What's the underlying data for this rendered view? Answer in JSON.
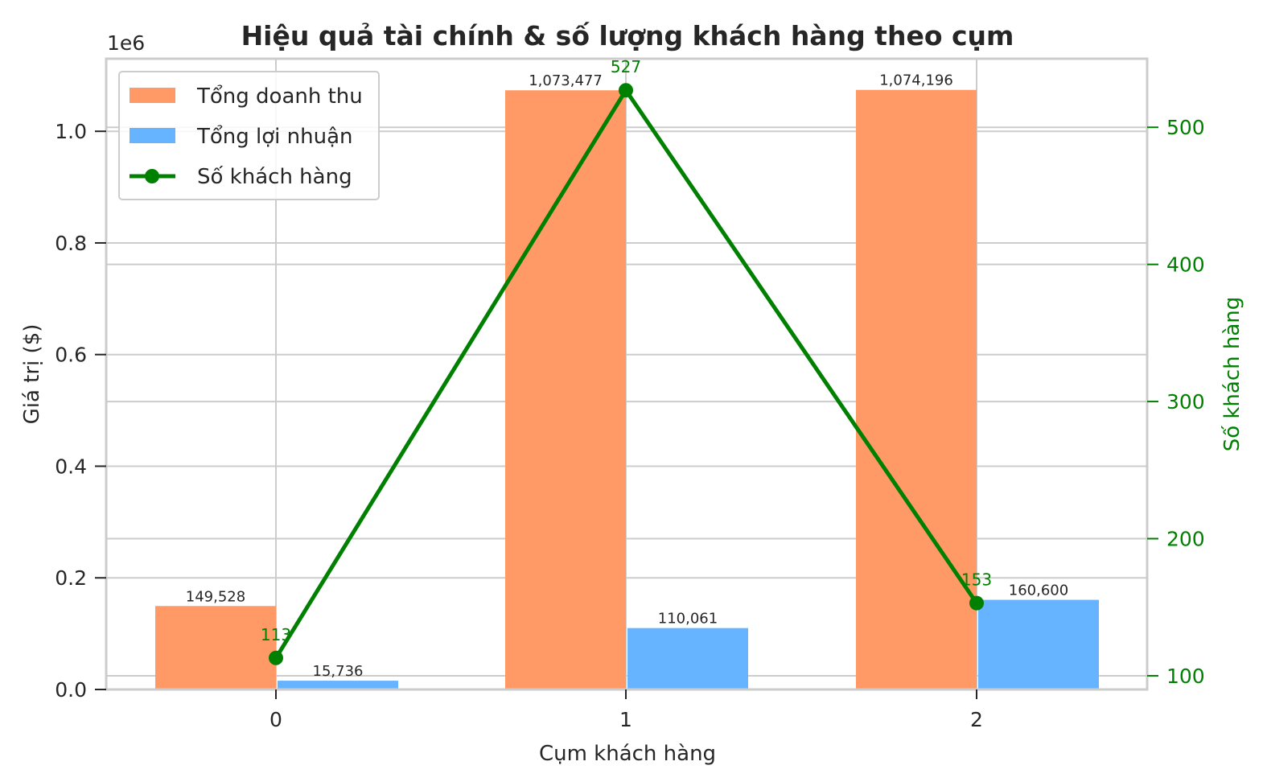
{
  "chart_data": {
    "type": "bar",
    "title": "Hiệu quả tài chính & số lượng khách hàng theo cụm",
    "xlabel": "Cụm khách hàng",
    "ylabel": "Giá trị ($)",
    "y_offset_label": "1e6",
    "y2label": "Số khách hàng",
    "categories": [
      "0",
      "1",
      "2"
    ],
    "ylim": [
      0,
      1130000
    ],
    "y_ticks": [
      0,
      200000,
      400000,
      600000,
      800000,
      1000000
    ],
    "y_tick_labels": [
      "0.0",
      "0.2",
      "0.4",
      "0.6",
      "0.8",
      "1.0"
    ],
    "y2lim": [
      90,
      550
    ],
    "y2_ticks": [
      100,
      200,
      300,
      400,
      500
    ],
    "y2_tick_labels": [
      "100",
      "200",
      "300",
      "400",
      "500"
    ],
    "series": [
      {
        "name": "Tổng doanh thu",
        "kind": "bar",
        "color": "#ff9a66",
        "values": [
          149528,
          1073477,
          1074196
        ],
        "labels": [
          "149,528",
          "1,073,477",
          "1,074,196"
        ]
      },
      {
        "name": "Tổng lợi nhuận",
        "kind": "bar",
        "color": "#66b3ff",
        "values": [
          15736,
          110061,
          160600
        ],
        "labels": [
          "15,736",
          "110,061",
          "160,600"
        ]
      },
      {
        "name": "Số khách hàng",
        "kind": "line",
        "axis": "right",
        "color": "#008000",
        "values": [
          113,
          527,
          153
        ],
        "labels": [
          "113",
          "527",
          "153"
        ]
      }
    ],
    "legend_position": "upper-left",
    "grid": true
  }
}
